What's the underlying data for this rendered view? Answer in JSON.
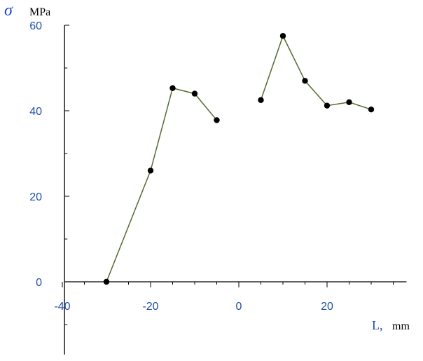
{
  "chart_data": {
    "type": "line",
    "title": "",
    "ylabel_symbol": "σ",
    "ylabel_unit": "MPa",
    "xlabel_symbol": "L,",
    "xlabel_unit": "mm",
    "xlim": [
      -40,
      38
    ],
    "ylim": [
      -17,
      60
    ],
    "x_ticks": [
      -40,
      -20,
      0,
      20
    ],
    "x_tick_labels": [
      "-40",
      "-20",
      "0",
      "20"
    ],
    "y_ticks": [
      0,
      20,
      40,
      60
    ],
    "y_tick_labels": [
      "0",
      "20",
      "40",
      "60"
    ],
    "grid": false,
    "legend": "none",
    "line_color": "#556b2f",
    "marker_color": "#000000",
    "series": [
      {
        "x": [
          -30,
          -20,
          -15,
          -10,
          -5
        ],
        "y": [
          0,
          26,
          45.3,
          44,
          37.8
        ]
      },
      {
        "x": [
          5,
          10,
          15,
          20,
          25,
          30
        ],
        "y": [
          42.5,
          57.5,
          47,
          41.2,
          42,
          40.3
        ]
      }
    ]
  }
}
